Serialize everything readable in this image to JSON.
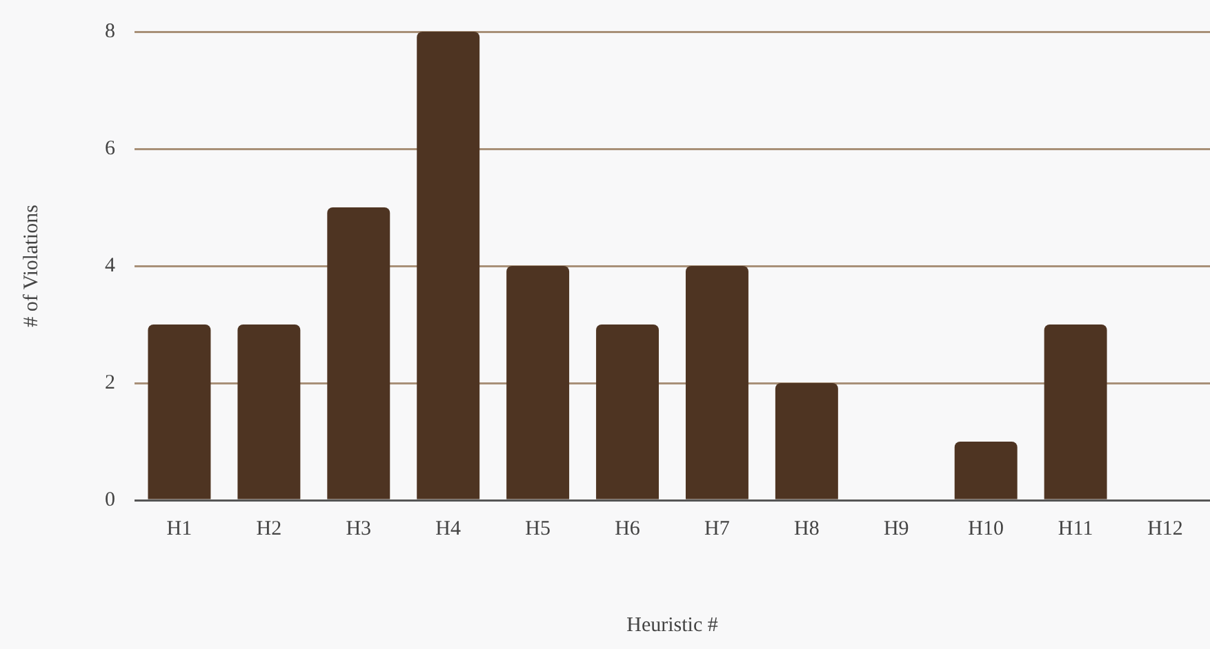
{
  "chart_data": {
    "type": "bar",
    "xlabel": "Heuristic #",
    "ylabel": "# of Violations",
    "categories": [
      "H1",
      "H2",
      "H3",
      "H4",
      "H5",
      "H6",
      "H7",
      "H8",
      "H9",
      "H10",
      "H11",
      "H12"
    ],
    "values": [
      3,
      3,
      5,
      8,
      4,
      3,
      4,
      2,
      0,
      1,
      3,
      0
    ],
    "color": "#4e3422",
    "ylim": [
      0,
      8
    ],
    "yticks": [
      0,
      2,
      4,
      6,
      8
    ],
    "grid": "y",
    "legend": false
  }
}
